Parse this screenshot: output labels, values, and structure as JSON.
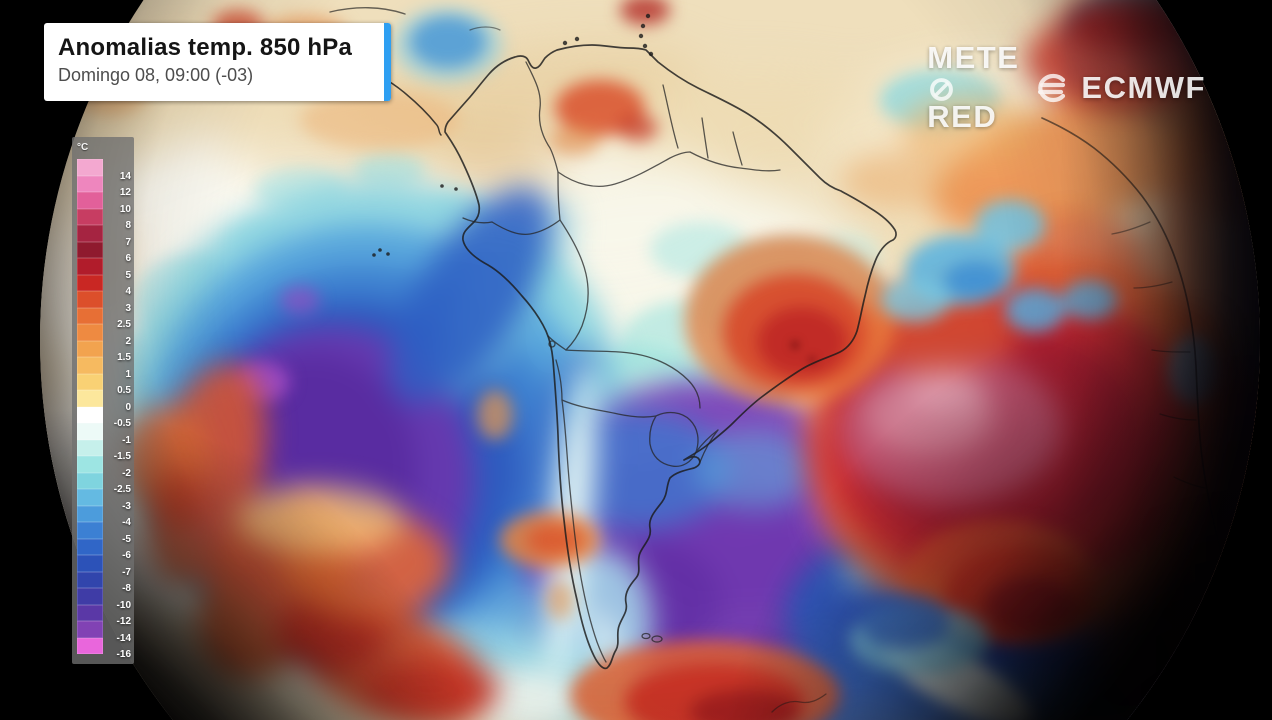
{
  "header": {
    "title": "Anomalias temp. 850 hPa",
    "datetime": "Domingo 08, 09:00 (-03)"
  },
  "watermark": {
    "brand_prefix": "METE",
    "brand_suffix": "RED",
    "partner": "ECMWF"
  },
  "legend": {
    "unit": "°C",
    "entries": [
      {
        "label": "14",
        "color": "#f3a8d0"
      },
      {
        "label": "12",
        "color": "#ee86be"
      },
      {
        "label": "10",
        "color": "#e2609a"
      },
      {
        "label": "8",
        "color": "#c73d62"
      },
      {
        "label": "7",
        "color": "#a52441"
      },
      {
        "label": "6",
        "color": "#8f1a2e"
      },
      {
        "label": "5",
        "color": "#b11c2b"
      },
      {
        "label": "4",
        "color": "#c92723"
      },
      {
        "label": "3",
        "color": "#dc4f2b"
      },
      {
        "label": "2.5",
        "color": "#e76f35"
      },
      {
        "label": "2",
        "color": "#ee8a41"
      },
      {
        "label": "1.5",
        "color": "#f2a34f"
      },
      {
        "label": "1",
        "color": "#f6ba60"
      },
      {
        "label": "0.5",
        "color": "#f9d174"
      },
      {
        "label": "0",
        "color": "#fce79c"
      },
      {
        "label": "-0.5",
        "color": "#ffffff"
      },
      {
        "label": "-1",
        "color": "#edfaf7"
      },
      {
        "label": "-1.5",
        "color": "#c6f0eb"
      },
      {
        "label": "-2",
        "color": "#9de5e3"
      },
      {
        "label": "-2.5",
        "color": "#7fd4df"
      },
      {
        "label": "-3",
        "color": "#64bae2"
      },
      {
        "label": "-4",
        "color": "#4c9cdc"
      },
      {
        "label": "-5",
        "color": "#3c80d3"
      },
      {
        "label": "-6",
        "color": "#3066c7"
      },
      {
        "label": "-7",
        "color": "#2c52b8"
      },
      {
        "label": "-8",
        "color": "#3145ac"
      },
      {
        "label": "-10",
        "color": "#3f3ca6"
      },
      {
        "label": "-12",
        "color": "#5a38a6"
      },
      {
        "label": "-14",
        "color": "#8142b4"
      },
      {
        "label": "-16",
        "color": "#e966dc"
      }
    ]
  },
  "colors": {
    "accent_blue": "#2E9FF2",
    "space_background": "#000000"
  }
}
